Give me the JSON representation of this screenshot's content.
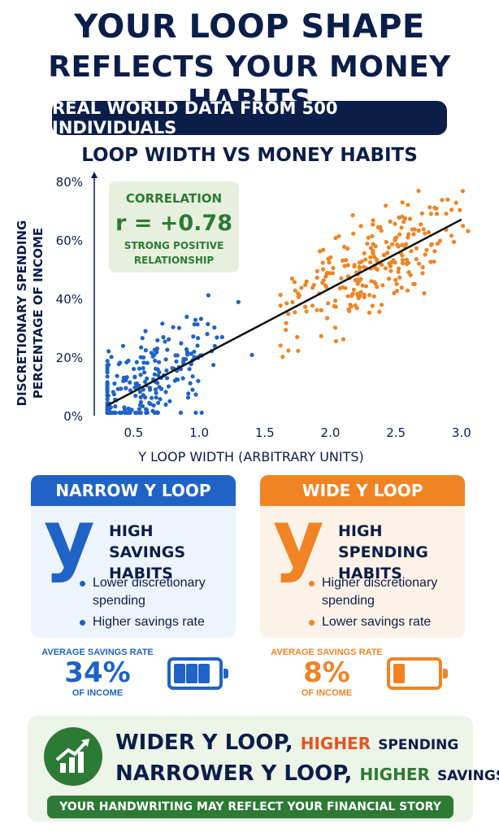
{
  "header": {
    "title_line1": "YOUR LOOP SHAPE",
    "title_line2": "REFLECTS YOUR MONEY HABITS",
    "banner": "REAL WORLD DATA FROM 500 INDIVIDUALS",
    "chart_title": "LOOP WIDTH VS MONEY HABITS"
  },
  "chart_data": {
    "type": "scatter",
    "title": "LOOP WIDTH VS MONEY HABITS",
    "xlabel": "Y LOOP WIDTH (ARBITRARY UNITS)",
    "ylabel_line1": "DISCRETIONARY SPENDING",
    "ylabel_line2": "PERCENTAGE OF INCOME",
    "xlim": [
      0.2,
      3.1
    ],
    "ylim": [
      0,
      80
    ],
    "x_ticks": [
      "0.5",
      "1.0",
      "1.5",
      "2.0",
      "2.5",
      "3.0"
    ],
    "x_tick_values": [
      0.5,
      1.0,
      1.5,
      2.0,
      2.5,
      3.0
    ],
    "y_ticks": [
      "0%",
      "20%",
      "40%",
      "60%",
      "80%"
    ],
    "y_tick_values": [
      0,
      20,
      40,
      60,
      80
    ],
    "series": [
      {
        "color": "#1f63c6",
        "x_range": [
          0.3,
          1.65
        ]
      },
      {
        "color": "#f08424",
        "x_range": [
          1.62,
          3.05
        ]
      }
    ],
    "n_points": 500,
    "trend_line": {
      "x": [
        0.3,
        3.0
      ],
      "y": [
        3.5,
        67
      ]
    },
    "annotation": {
      "line1": "CORRELATION",
      "line2": "r = +0.78",
      "line3": "STRONG POSITIVE",
      "line4": "RELATIONSHIP"
    },
    "grid": false
  },
  "narrow": {
    "header": "NARROW Y LOOP",
    "glyph": "y",
    "habit_line1": "HIGH SAVINGS",
    "habit_line2": "HABITS",
    "bullets": [
      "Lower discretionary spending",
      "Higher savings rate"
    ],
    "rate_caption": "AVERAGE SAVINGS RATE",
    "rate_value": "34%",
    "rate_sub": "OF INCOME",
    "battery_level": 0.75,
    "color": "#1f63c6"
  },
  "wide": {
    "header": "WIDE Y LOOP",
    "glyph": "y",
    "habit_line1": "HIGH SPENDING",
    "habit_line2": "HABITS",
    "bullets": [
      "Higher discretionary spending",
      "Lower savings rate"
    ],
    "rate_caption": "AVERAGE SAVINGS RATE",
    "rate_value": "8%",
    "rate_sub": "OF INCOME",
    "battery_level": 0.2,
    "color": "#f08424"
  },
  "footer": {
    "line1_main": "WIDER Y LOOP,",
    "line1_hi": "HIGHER",
    "line1_tail": "SPENDING",
    "line2_main": "NARROWER Y LOOP,",
    "line2_hi": "HIGHER",
    "line2_tail": "SAVINGS",
    "strip": "YOUR HANDWRITING MAY REFLECT YOUR FINANCIAL STORY",
    "icon": "growth-chart-icon"
  }
}
